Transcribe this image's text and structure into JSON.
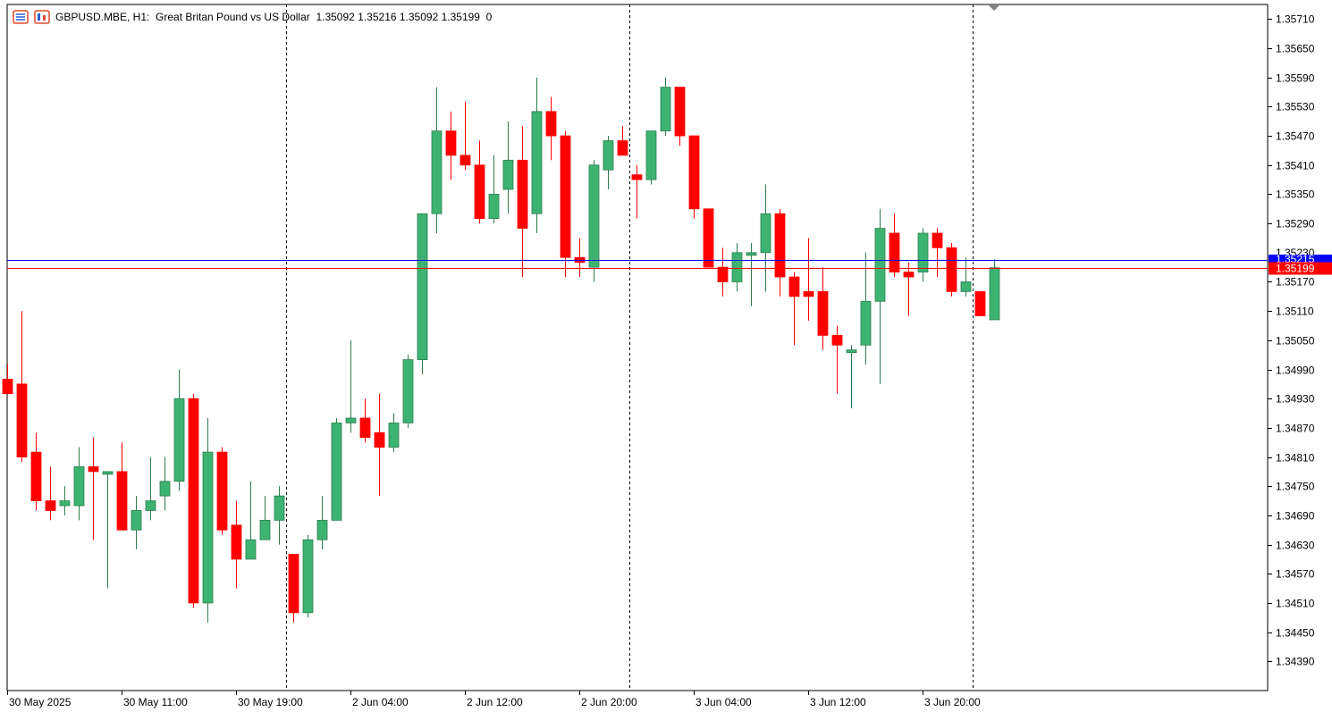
{
  "header": {
    "symbol": "GBPUSD.MBE, H1:",
    "description": "Great Britan Pound vs US Dollar",
    "ohlc": "1.35092 1.35216 1.35092 1.35199",
    "volume": "0"
  },
  "icons": [
    "list-icon",
    "chart-icon"
  ],
  "colors": {
    "bull": "#3cb371",
    "bull_border": "#2e7d4f",
    "bear": "#ff0000",
    "bid_line": "#0000ff",
    "last_line": "#ff0000",
    "bid_badge": "#0000ff",
    "last_badge": "#ff0000",
    "grid_sep": "#000000"
  },
  "chart_data": {
    "type": "candlestick",
    "title": "",
    "ylim": [
      1.3433,
      1.3574
    ],
    "y_ticks": [
      "1.35710",
      "1.35650",
      "1.35590",
      "1.35530",
      "1.35470",
      "1.35410",
      "1.35350",
      "1.35290",
      "1.35170",
      "1.35110",
      "1.35050",
      "1.34990",
      "1.34930",
      "1.34870",
      "1.34810",
      "1.34750",
      "1.34690",
      "1.34630",
      "1.34570",
      "1.34510",
      "1.34450",
      "1.34390"
    ],
    "x_labels": [
      "30 May 2025",
      "30 May 11:00",
      "30 May 19:00",
      "2 Jun 04:00",
      "2 Jun 12:00",
      "2 Jun 20:00",
      "3 Jun 04:00",
      "3 Jun 12:00",
      "3 Jun 20:00"
    ],
    "session_separator_bars": [
      19.5,
      43.5,
      67.5
    ],
    "price_lines": {
      "bid": {
        "value": 1.35215,
        "label": "1.35215"
      },
      "last": {
        "value": 1.35199,
        "label": "1.35199"
      },
      "hidden_badge": "1.35230"
    },
    "candles": [
      {
        "o": 1.3497,
        "h": 1.35,
        "l": 1.3494,
        "c": 1.3494
      },
      {
        "o": 1.3496,
        "h": 1.3511,
        "l": 1.348,
        "c": 1.3481
      },
      {
        "o": 1.3482,
        "h": 1.3486,
        "l": 1.347,
        "c": 1.3472
      },
      {
        "o": 1.3472,
        "h": 1.3479,
        "l": 1.3468,
        "c": 1.347
      },
      {
        "o": 1.3471,
        "h": 1.3475,
        "l": 1.3469,
        "c": 1.3472
      },
      {
        "o": 1.3471,
        "h": 1.3483,
        "l": 1.3468,
        "c": 1.3479
      },
      {
        "o": 1.3479,
        "h": 1.3485,
        "l": 1.3464,
        "c": 1.3478
      },
      {
        "o": 1.3478,
        "h": 1.3478,
        "l": 1.3454,
        "c": 1.3478
      },
      {
        "o": 1.3478,
        "h": 1.3484,
        "l": 1.3466,
        "c": 1.3466
      },
      {
        "o": 1.3466,
        "h": 1.3473,
        "l": 1.3462,
        "c": 1.347
      },
      {
        "o": 1.347,
        "h": 1.3481,
        "l": 1.3468,
        "c": 1.3472
      },
      {
        "o": 1.3473,
        "h": 1.3481,
        "l": 1.347,
        "c": 1.3476
      },
      {
        "o": 1.3476,
        "h": 1.3499,
        "l": 1.3474,
        "c": 1.3493
      },
      {
        "o": 1.3493,
        "h": 1.3494,
        "l": 1.345,
        "c": 1.3451
      },
      {
        "o": 1.3451,
        "h": 1.3489,
        "l": 1.3447,
        "c": 1.3482
      },
      {
        "o": 1.3482,
        "h": 1.3483,
        "l": 1.3465,
        "c": 1.3466
      },
      {
        "o": 1.3467,
        "h": 1.3472,
        "l": 1.3454,
        "c": 1.346
      },
      {
        "o": 1.346,
        "h": 1.3476,
        "l": 1.346,
        "c": 1.3464
      },
      {
        "o": 1.3464,
        "h": 1.3473,
        "l": 1.3464,
        "c": 1.3468
      },
      {
        "o": 1.3468,
        "h": 1.3475,
        "l": 1.3463,
        "c": 1.3473
      },
      {
        "o": 1.3461,
        "h": 1.3461,
        "l": 1.3447,
        "c": 1.3449
      },
      {
        "o": 1.3449,
        "h": 1.3465,
        "l": 1.3448,
        "c": 1.3464
      },
      {
        "o": 1.3464,
        "h": 1.3473,
        "l": 1.3462,
        "c": 1.3468
      },
      {
        "o": 1.3468,
        "h": 1.3489,
        "l": 1.3468,
        "c": 1.3488
      },
      {
        "o": 1.3488,
        "h": 1.3505,
        "l": 1.3486,
        "c": 1.3489
      },
      {
        "o": 1.3489,
        "h": 1.3493,
        "l": 1.3484,
        "c": 1.3485
      },
      {
        "o": 1.3486,
        "h": 1.3494,
        "l": 1.3473,
        "c": 1.3483
      },
      {
        "o": 1.3483,
        "h": 1.349,
        "l": 1.3482,
        "c": 1.3488
      },
      {
        "o": 1.3488,
        "h": 1.3502,
        "l": 1.3487,
        "c": 1.3501
      },
      {
        "o": 1.3501,
        "h": 1.3531,
        "l": 1.3498,
        "c": 1.3531
      },
      {
        "o": 1.3531,
        "h": 1.3557,
        "l": 1.3527,
        "c": 1.3548
      },
      {
        "o": 1.3548,
        "h": 1.3552,
        "l": 1.3538,
        "c": 1.3543
      },
      {
        "o": 1.3543,
        "h": 1.3554,
        "l": 1.354,
        "c": 1.3541
      },
      {
        "o": 1.3541,
        "h": 1.3546,
        "l": 1.3529,
        "c": 1.353
      },
      {
        "o": 1.353,
        "h": 1.3543,
        "l": 1.3529,
        "c": 1.3535
      },
      {
        "o": 1.3536,
        "h": 1.355,
        "l": 1.3531,
        "c": 1.3542
      },
      {
        "o": 1.3542,
        "h": 1.3549,
        "l": 1.3518,
        "c": 1.3528
      },
      {
        "o": 1.3531,
        "h": 1.3559,
        "l": 1.3527,
        "c": 1.3552
      },
      {
        "o": 1.3552,
        "h": 1.3555,
        "l": 1.3542,
        "c": 1.3547
      },
      {
        "o": 1.3547,
        "h": 1.3548,
        "l": 1.3518,
        "c": 1.3522
      },
      {
        "o": 1.3522,
        "h": 1.3526,
        "l": 1.3518,
        "c": 1.3521
      },
      {
        "o": 1.352,
        "h": 1.3542,
        "l": 1.3517,
        "c": 1.3541
      },
      {
        "o": 1.354,
        "h": 1.3547,
        "l": 1.3536,
        "c": 1.3546
      },
      {
        "o": 1.3546,
        "h": 1.3549,
        "l": 1.3543,
        "c": 1.3543
      },
      {
        "o": 1.3539,
        "h": 1.3541,
        "l": 1.353,
        "c": 1.3538
      },
      {
        "o": 1.3538,
        "h": 1.3548,
        "l": 1.3537,
        "c": 1.3548
      },
      {
        "o": 1.3548,
        "h": 1.3559,
        "l": 1.3547,
        "c": 1.3557
      },
      {
        "o": 1.3557,
        "h": 1.3557,
        "l": 1.3545,
        "c": 1.3547
      },
      {
        "o": 1.3547,
        "h": 1.3547,
        "l": 1.353,
        "c": 1.3532
      },
      {
        "o": 1.3532,
        "h": 1.3532,
        "l": 1.352,
        "c": 1.352
      },
      {
        "o": 1.352,
        "h": 1.3524,
        "l": 1.3514,
        "c": 1.3517
      },
      {
        "o": 1.3517,
        "h": 1.3525,
        "l": 1.3515,
        "c": 1.3523
      },
      {
        "o": 1.3523,
        "h": 1.3525,
        "l": 1.3512,
        "c": 1.3523
      },
      {
        "o": 1.3523,
        "h": 1.3537,
        "l": 1.3515,
        "c": 1.3531
      },
      {
        "o": 1.3531,
        "h": 1.3532,
        "l": 1.3514,
        "c": 1.3518
      },
      {
        "o": 1.3518,
        "h": 1.3519,
        "l": 1.3504,
        "c": 1.3514
      },
      {
        "o": 1.3515,
        "h": 1.3526,
        "l": 1.3509,
        "c": 1.3514
      },
      {
        "o": 1.3515,
        "h": 1.352,
        "l": 1.3503,
        "c": 1.3506
      },
      {
        "o": 1.3506,
        "h": 1.3508,
        "l": 1.3494,
        "c": 1.3504
      },
      {
        "o": 1.3503,
        "h": 1.3504,
        "l": 1.3491,
        "c": 1.3503
      },
      {
        "o": 1.3504,
        "h": 1.3523,
        "l": 1.35,
        "c": 1.3513
      },
      {
        "o": 1.3513,
        "h": 1.3532,
        "l": 1.3496,
        "c": 1.3528
      },
      {
        "o": 1.3527,
        "h": 1.3531,
        "l": 1.3518,
        "c": 1.3519
      },
      {
        "o": 1.3519,
        "h": 1.3521,
        "l": 1.351,
        "c": 1.3518
      },
      {
        "o": 1.3519,
        "h": 1.3528,
        "l": 1.3517,
        "c": 1.3527
      },
      {
        "o": 1.3527,
        "h": 1.3528,
        "l": 1.3518,
        "c": 1.3524
      },
      {
        "o": 1.3524,
        "h": 1.3525,
        "l": 1.3514,
        "c": 1.3515
      },
      {
        "o": 1.3515,
        "h": 1.3522,
        "l": 1.3514,
        "c": 1.3517
      },
      {
        "o": 1.3515,
        "h": 1.3515,
        "l": 1.351,
        "c": 1.351
      },
      {
        "o": 1.35092,
        "h": 1.35216,
        "l": 1.35092,
        "c": 1.35199
      }
    ]
  }
}
